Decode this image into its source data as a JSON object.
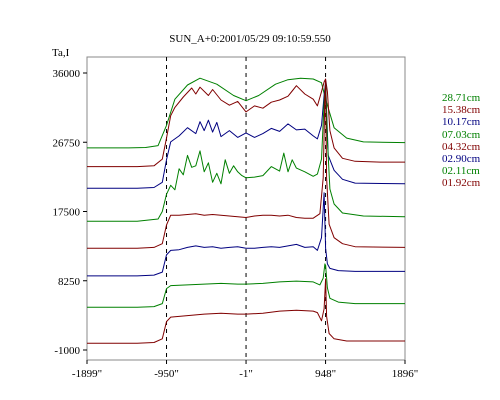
{
  "chart_data": {
    "type": "line",
    "title": "SUN_A+0:2001/05/29 09:10:59.550",
    "ylabel": "Ta,I",
    "xlabel": "",
    "y_ticks": [
      36000,
      26750,
      17500,
      8250,
      -1000
    ],
    "y_tick_labels": [
      "36000",
      "26750",
      "17500",
      "8250",
      "-1000"
    ],
    "x_ticks": [
      -1899,
      -950,
      -1,
      948,
      1896
    ],
    "x_tick_labels": [
      "-1899\"",
      "-950\"",
      "-1\"",
      "948\"",
      "1896\""
    ],
    "xlim": [
      -1899,
      1896
    ],
    "ylim": [
      -1000,
      36000
    ],
    "dashed_verticals": [
      -950,
      -1,
      948
    ],
    "grid": false,
    "legend_position": "right",
    "series": [
      {
        "name": "28.71cm",
        "color": "#008000",
        "x": [
          -1899,
          -1400,
          -1200,
          -1050,
          -950,
          -850,
          -700,
          -550,
          -350,
          -150,
          -1,
          150,
          350,
          500,
          650,
          800,
          900,
          948,
          1050,
          1200,
          1400,
          1896
        ],
        "y": [
          26000,
          26000,
          26050,
          26300,
          29000,
          32500,
          34400,
          35300,
          34500,
          33000,
          32300,
          33000,
          34500,
          35100,
          35300,
          35200,
          34700,
          32500,
          28700,
          27300,
          26800,
          26700
        ]
      },
      {
        "name": "15.38cm",
        "color": "#800000",
        "x": [
          -1899,
          -1300,
          -1100,
          -1000,
          -950,
          -900,
          -850,
          -750,
          -650,
          -600,
          -550,
          -450,
          -400,
          -300,
          -200,
          -100,
          -1,
          100,
          200,
          300,
          400,
          500,
          550,
          600,
          700,
          800,
          850,
          900,
          930,
          948,
          970,
          1000,
          1050,
          1150,
          1300,
          1600,
          1896
        ],
        "y": [
          23500,
          23500,
          23600,
          24500,
          27300,
          30300,
          31400,
          32800,
          34000,
          33200,
          34100,
          33000,
          33800,
          32400,
          31700,
          32200,
          30800,
          31600,
          31300,
          32100,
          32400,
          32900,
          33600,
          34300,
          33200,
          32500,
          31600,
          33500,
          34800,
          35200,
          33500,
          28300,
          26000,
          24600,
          24200,
          24100,
          24100
        ]
      },
      {
        "name": "10.17cm",
        "color": "#000080",
        "x": [
          -1899,
          -1300,
          -1100,
          -1000,
          -950,
          -900,
          -800,
          -700,
          -600,
          -550,
          -500,
          -450,
          -400,
          -350,
          -300,
          -200,
          -100,
          -1,
          100,
          200,
          300,
          400,
          500,
          600,
          700,
          800,
          850,
          900,
          930,
          948,
          980,
          1050,
          1150,
          1300,
          1896
        ],
        "y": [
          20600,
          20600,
          20700,
          21400,
          24400,
          26800,
          27600,
          28700,
          27900,
          29500,
          28300,
          29700,
          28100,
          29400,
          27500,
          28300,
          27400,
          28000,
          27400,
          27900,
          28600,
          28200,
          29200,
          28400,
          28500,
          27600,
          27200,
          29000,
          33000,
          34800,
          25000,
          23000,
          21800,
          21300,
          21200
        ]
      },
      {
        "name": "07.03cm",
        "color": "#008000",
        "x": [
          -1899,
          -1300,
          -1050,
          -1000,
          -950,
          -900,
          -850,
          -800,
          -750,
          -700,
          -650,
          -600,
          -550,
          -500,
          -450,
          -400,
          -350,
          -300,
          -250,
          -200,
          -150,
          -100,
          -50,
          -1,
          100,
          200,
          300,
          400,
          450,
          500,
          550,
          600,
          700,
          800,
          850,
          900,
          930,
          948,
          970,
          1000,
          1050,
          1150,
          1400,
          1896
        ],
        "y": [
          16200,
          16200,
          16500,
          17500,
          19800,
          21000,
          20400,
          23200,
          22400,
          25000,
          23400,
          23600,
          25600,
          22800,
          24000,
          21400,
          22600,
          21200,
          24400,
          22600,
          23600,
          22800,
          22300,
          22000,
          22100,
          22300,
          23500,
          22900,
          25300,
          22800,
          24400,
          23300,
          22800,
          22200,
          22500,
          24500,
          32000,
          34600,
          27000,
          20500,
          18500,
          17300,
          16900,
          16800
        ]
      },
      {
        "name": "04.32cm",
        "color": "#800000",
        "x": [
          -1899,
          -1300,
          -1100,
          -1000,
          -950,
          -900,
          -800,
          -700,
          -600,
          -500,
          -400,
          -300,
          -200,
          -100,
          -1,
          100,
          200,
          300,
          400,
          500,
          600,
          700,
          800,
          880,
          920,
          940,
          948,
          960,
          990,
          1050,
          1150,
          1300,
          1896
        ],
        "y": [
          12600,
          12600,
          12700,
          13200,
          15700,
          17000,
          17000,
          17100,
          17200,
          17000,
          17100,
          17000,
          16900,
          16800,
          16700,
          16900,
          17000,
          17000,
          16900,
          17000,
          16700,
          16600,
          16600,
          17200,
          22000,
          33000,
          34900,
          22000,
          15800,
          14000,
          13200,
          12800,
          12700
        ]
      },
      {
        "name": "02.90cm",
        "color": "#000080",
        "x": [
          -1899,
          -1300,
          -1100,
          -1000,
          -950,
          -900,
          -800,
          -700,
          -600,
          -500,
          -400,
          -300,
          -200,
          -100,
          -1,
          100,
          200,
          300,
          400,
          500,
          600,
          700,
          800,
          850,
          900,
          930,
          948,
          970,
          1000,
          1100,
          1300,
          1896
        ],
        "y": [
          8900,
          8900,
          9000,
          9400,
          11700,
          12300,
          12400,
          12700,
          12900,
          12700,
          12800,
          12600,
          12700,
          12800,
          12600,
          12600,
          12700,
          12800,
          12700,
          12900,
          13100,
          12700,
          12800,
          12300,
          14000,
          20000,
          12600,
          10500,
          9900,
          9600,
          9500,
          9500
        ]
      },
      {
        "name": "02.11cm",
        "color": "#008000",
        "x": [
          -1899,
          -1300,
          -1100,
          -1000,
          -950,
          -900,
          -700,
          -500,
          -300,
          -100,
          -1,
          200,
          400,
          600,
          800,
          880,
          920,
          940,
          948,
          970,
          1000,
          1100,
          1300,
          1896
        ],
        "y": [
          4700,
          4700,
          4800,
          5200,
          7200,
          7600,
          7700,
          7800,
          7900,
          7800,
          7800,
          7900,
          8100,
          8200,
          8100,
          7700,
          8600,
          10500,
          10300,
          7300,
          5900,
          5400,
          5200,
          5200
        ]
      },
      {
        "name": "01.92cm",
        "color": "#800000",
        "x": [
          -1899,
          -1300,
          -1100,
          -1000,
          -950,
          -900,
          -700,
          -500,
          -300,
          -100,
          -1,
          200,
          400,
          600,
          800,
          850,
          900,
          930,
          948,
          960,
          990,
          1050,
          1200,
          1896
        ],
        "y": [
          -100,
          -100,
          0,
          500,
          2800,
          3400,
          3600,
          3800,
          3900,
          3800,
          3800,
          3900,
          4200,
          4300,
          4200,
          4000,
          2900,
          4500,
          8500,
          3500,
          1200,
          500,
          200,
          200
        ]
      }
    ]
  }
}
